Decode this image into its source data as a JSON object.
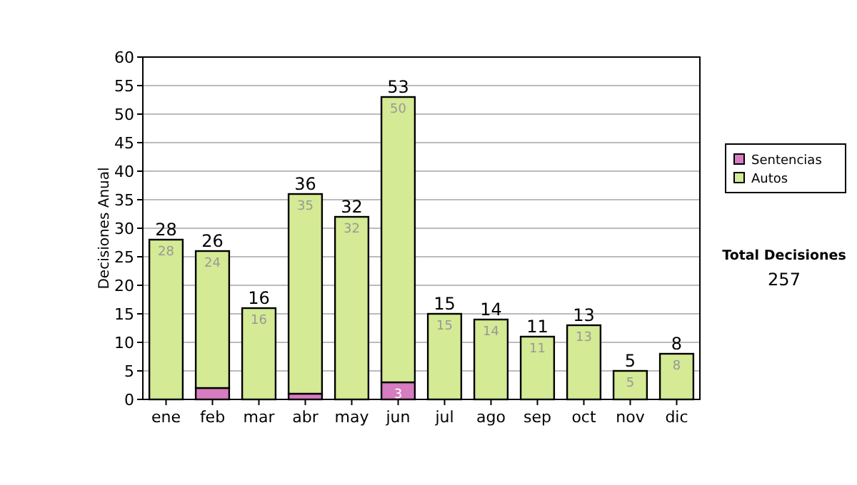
{
  "chart_data": {
    "type": "bar",
    "stacked": true,
    "ylabel": "Decisiones Anual",
    "categories": [
      "ene",
      "feb",
      "mar",
      "abr",
      "may",
      "jun",
      "jul",
      "ago",
      "sep",
      "oct",
      "nov",
      "dic"
    ],
    "series": [
      {
        "name": "Sentencias",
        "color": "#d67cc0",
        "values": [
          0,
          2,
          0,
          1,
          0,
          3,
          0,
          0,
          0,
          0,
          0,
          0
        ],
        "value_labels": [
          null,
          null,
          null,
          null,
          null,
          "3",
          null,
          null,
          null,
          null,
          null,
          null
        ]
      },
      {
        "name": "Autos",
        "color": "#d4ea94",
        "values": [
          28,
          24,
          16,
          35,
          32,
          50,
          15,
          14,
          11,
          13,
          5,
          8
        ],
        "value_labels": [
          "28",
          "24",
          "16",
          "35",
          "32",
          "50",
          "15",
          "14",
          "11",
          "13",
          "5",
          "8"
        ]
      }
    ],
    "totals": [
      "28",
      "26",
      "16",
      "36",
      "32",
      "53",
      "15",
      "14",
      "11",
      "13",
      "5",
      "8"
    ],
    "ylim": [
      0,
      60
    ],
    "yticks": [
      0,
      5,
      10,
      15,
      20,
      25,
      30,
      35,
      40,
      45,
      50,
      55,
      60
    ],
    "grid": "y",
    "legend": "right",
    "annotations": [
      "Total Decisiones",
      "257"
    ]
  }
}
